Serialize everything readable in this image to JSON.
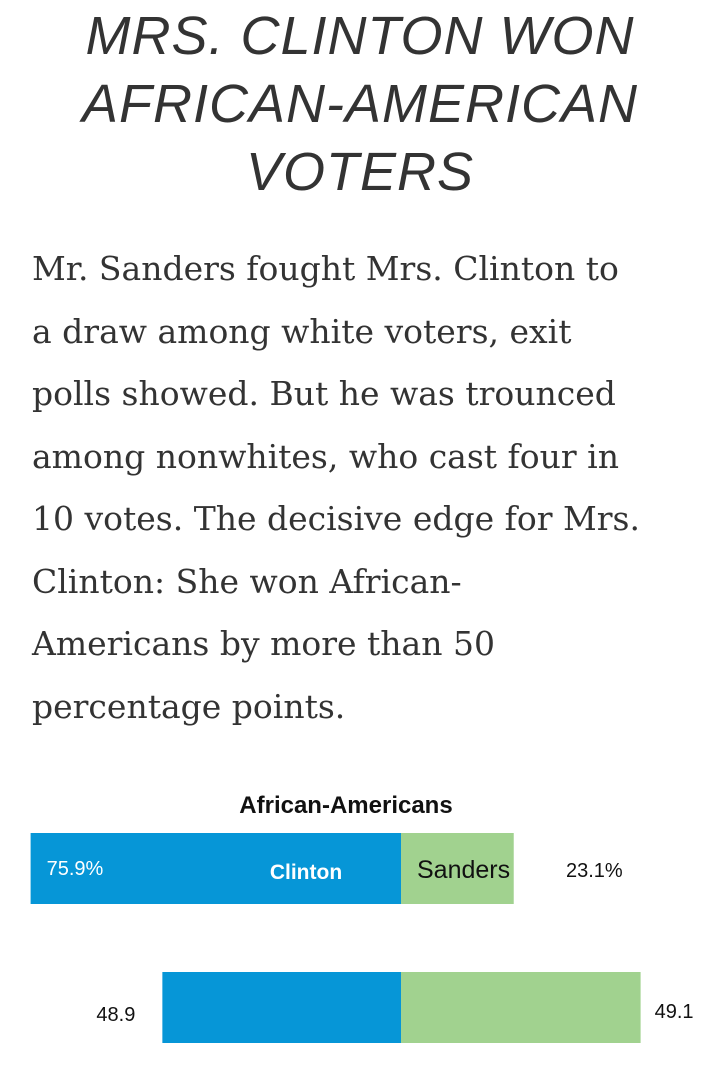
{
  "headline": {
    "lines": [
      "MRS. CLINTON WON",
      "AFRICAN-AMERICAN",
      "VOTERS"
    ]
  },
  "body": {
    "lines": [
      "Mr. Sanders fought Mrs. Clinton to",
      "a draw among white voters, exit",
      "polls showed. But he was trounced",
      "among nonwhites, who cast four in",
      "10 votes. The decisive edge for Mrs.",
      "Clinton: She won African-",
      "Americans by more than 50",
      "percentage points."
    ]
  },
  "chart_data": {
    "type": "bar",
    "orientation": "horizontal",
    "stacked": true,
    "colors": {
      "Clinton": "#0696d7",
      "Sanders": "#a1d28f"
    },
    "groups": [
      {
        "title": "African-Americans",
        "values": {
          "Clinton": 75.9,
          "Sanders": 23.1
        },
        "value_labels": {
          "Clinton": "75.9%",
          "Sanders": "23.1%"
        },
        "segment_labels": {
          "Clinton": "Clinton",
          "Sanders": "Sanders"
        }
      },
      {
        "title": "",
        "values": {
          "Clinton": 48.9,
          "Sanders": 49.1
        },
        "value_labels": {
          "Clinton": "48.9",
          "Sanders": "49.1"
        }
      }
    ]
  }
}
